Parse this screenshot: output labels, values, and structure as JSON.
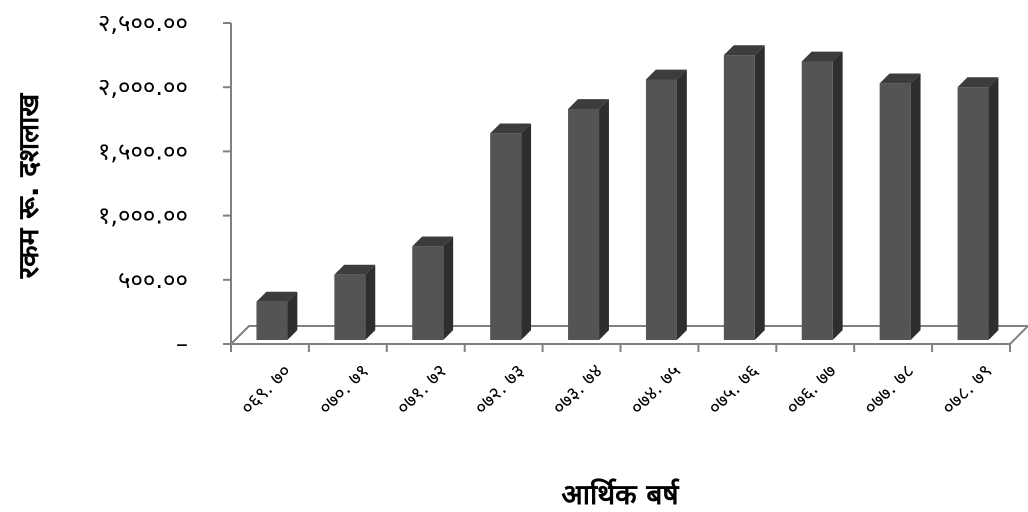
{
  "chart_data": {
    "type": "bar",
    "style": "3d-column",
    "title": "",
    "xlabel": "आर्थिक बर्ष",
    "ylabel": "रकम रू. दशलाख",
    "categories": [
      "०६९. ७०",
      "०७०. ७१",
      "०७१. ७२",
      "०७२. ७३",
      "०७३. ७४",
      "०७४. ७५",
      "०७५. ७६",
      "०७६. ७७",
      "०७७. ७८",
      "०७८. ७९"
    ],
    "values": [
      330,
      540,
      760,
      1640,
      1830,
      2060,
      2250,
      2200,
      2030,
      2000
    ],
    "ylim": [
      0,
      2500
    ],
    "yticks": [
      0,
      500,
      1000,
      1500,
      2000,
      2500
    ],
    "ytick_labels": [
      "–",
      "५००.००",
      "१,०००.००",
      "१,५००.००",
      "२,०००.००",
      "२,५००.००"
    ],
    "grid": false,
    "legend": "none",
    "colors": {
      "bar_front": "#545454",
      "bar_side": "#2e2e2e",
      "bar_top": "#3c3c3c",
      "axis": "#808080"
    }
  }
}
